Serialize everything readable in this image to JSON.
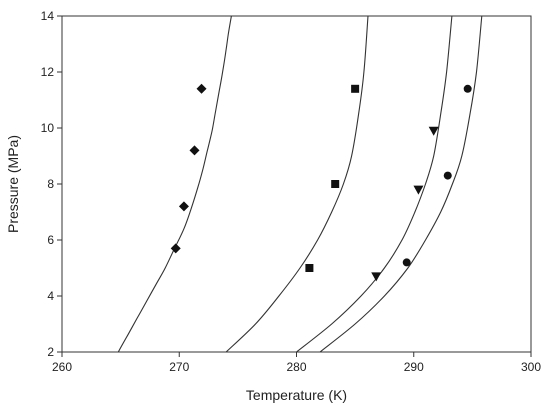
{
  "chart_data": {
    "type": "scatter",
    "title": "",
    "xlabel": "Temperature (K)",
    "ylabel": "Pressure (MPa)",
    "xlim": [
      260,
      300
    ],
    "ylim": [
      2,
      14
    ],
    "xticks": [
      260,
      270,
      280,
      290,
      300
    ],
    "yticks": [
      2,
      4,
      6,
      8,
      10,
      12,
      14
    ],
    "grid": false,
    "legend": "none",
    "curves": [
      {
        "x": [
          264.8,
          265.6,
          266.4,
          267.2,
          268.0,
          268.8,
          269.6,
          270.4,
          271.0,
          271.6,
          272.0,
          272.4,
          272.8,
          273.1,
          273.4,
          273.7,
          274.0,
          274.2,
          274.45
        ],
        "y": [
          2.0,
          2.6,
          3.2,
          3.8,
          4.4,
          5.0,
          5.7,
          6.4,
          7.1,
          7.9,
          8.5,
          9.2,
          9.9,
          10.6,
          11.3,
          12.0,
          12.8,
          13.4,
          14.0
        ]
      },
      {
        "x": [
          274.0,
          276.5,
          278.5,
          280.3,
          281.8,
          283.0,
          284.0,
          284.7,
          285.3,
          285.75,
          286.1
        ],
        "y": [
          2.0,
          3.0,
          4.0,
          5.0,
          6.0,
          7.0,
          8.0,
          9.0,
          10.5,
          12.0,
          14.0
        ]
      },
      {
        "x": [
          280.0,
          283.0,
          285.5,
          287.5,
          289.0,
          290.1,
          291.0,
          291.7,
          292.3,
          292.8,
          293.25
        ],
        "y": [
          2.0,
          3.0,
          4.0,
          5.0,
          6.0,
          7.0,
          8.0,
          9.0,
          10.5,
          12.0,
          14.0
        ]
      },
      {
        "x": [
          282.0,
          285.0,
          287.5,
          289.5,
          291.0,
          292.3,
          293.3,
          294.1,
          294.8,
          295.35,
          295.8
        ],
        "y": [
          2.0,
          3.0,
          4.0,
          5.0,
          6.0,
          7.0,
          8.0,
          9.0,
          10.5,
          12.0,
          14.0
        ]
      }
    ],
    "series": [
      {
        "marker": "diamond",
        "x": [
          269.7,
          270.4,
          271.3,
          271.9
        ],
        "y": [
          5.7,
          7.2,
          9.2,
          11.4
        ]
      },
      {
        "marker": "square",
        "x": [
          281.1,
          283.3,
          285.0
        ],
        "y": [
          5.0,
          8.0,
          11.4
        ]
      },
      {
        "marker": "triangle-down",
        "x": [
          286.8,
          290.4,
          291.7
        ],
        "y": [
          4.7,
          7.8,
          9.9
        ]
      },
      {
        "marker": "circle",
        "x": [
          289.4,
          292.9,
          294.6
        ],
        "y": [
          5.2,
          8.3,
          11.4
        ]
      }
    ]
  }
}
